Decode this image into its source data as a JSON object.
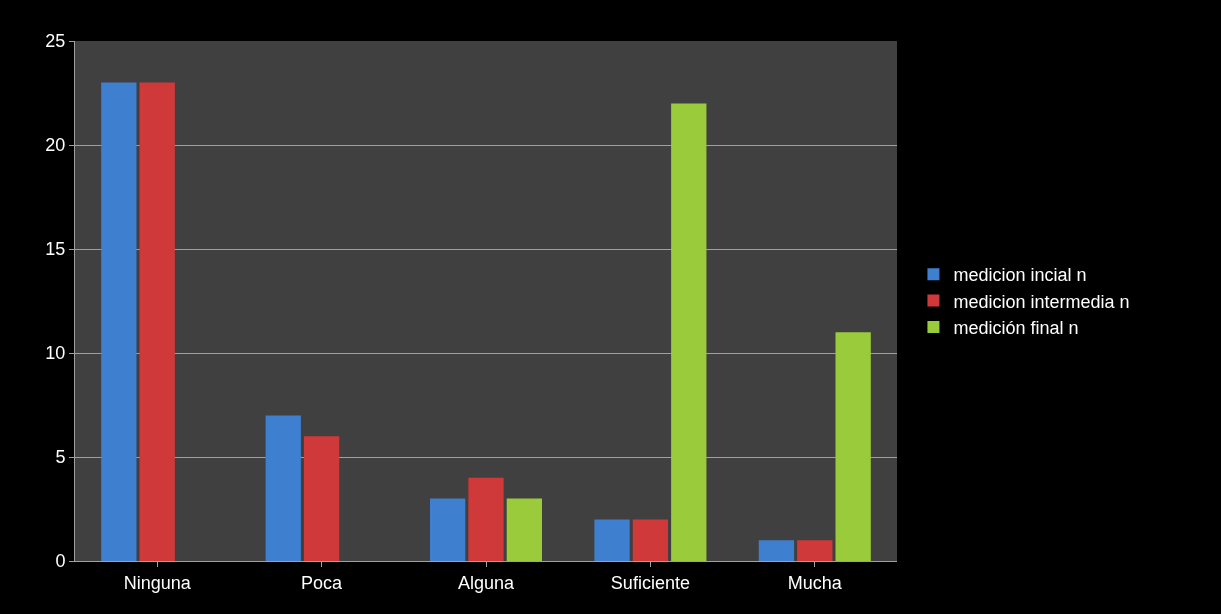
{
  "chart_data": {
    "type": "bar",
    "categories": [
      "Ninguna",
      "Poca",
      "Alguna",
      "Suficiente",
      "Mucha"
    ],
    "series": [
      {
        "name": "medicion incial n",
        "color": "#3f7fd0",
        "values": [
          23,
          7,
          3,
          2,
          1
        ]
      },
      {
        "name": "medicion intermedia n",
        "color": "#d0393a",
        "values": [
          23,
          6,
          4,
          2,
          1
        ]
      },
      {
        "name": "medición final n",
        "color": "#9acb3a",
        "values": [
          null,
          null,
          3,
          22,
          11
        ]
      }
    ],
    "ylim": [
      0,
      25
    ],
    "yticks": [
      0,
      5,
      10,
      15,
      20,
      25
    ],
    "grid": "y",
    "legend": "right"
  }
}
